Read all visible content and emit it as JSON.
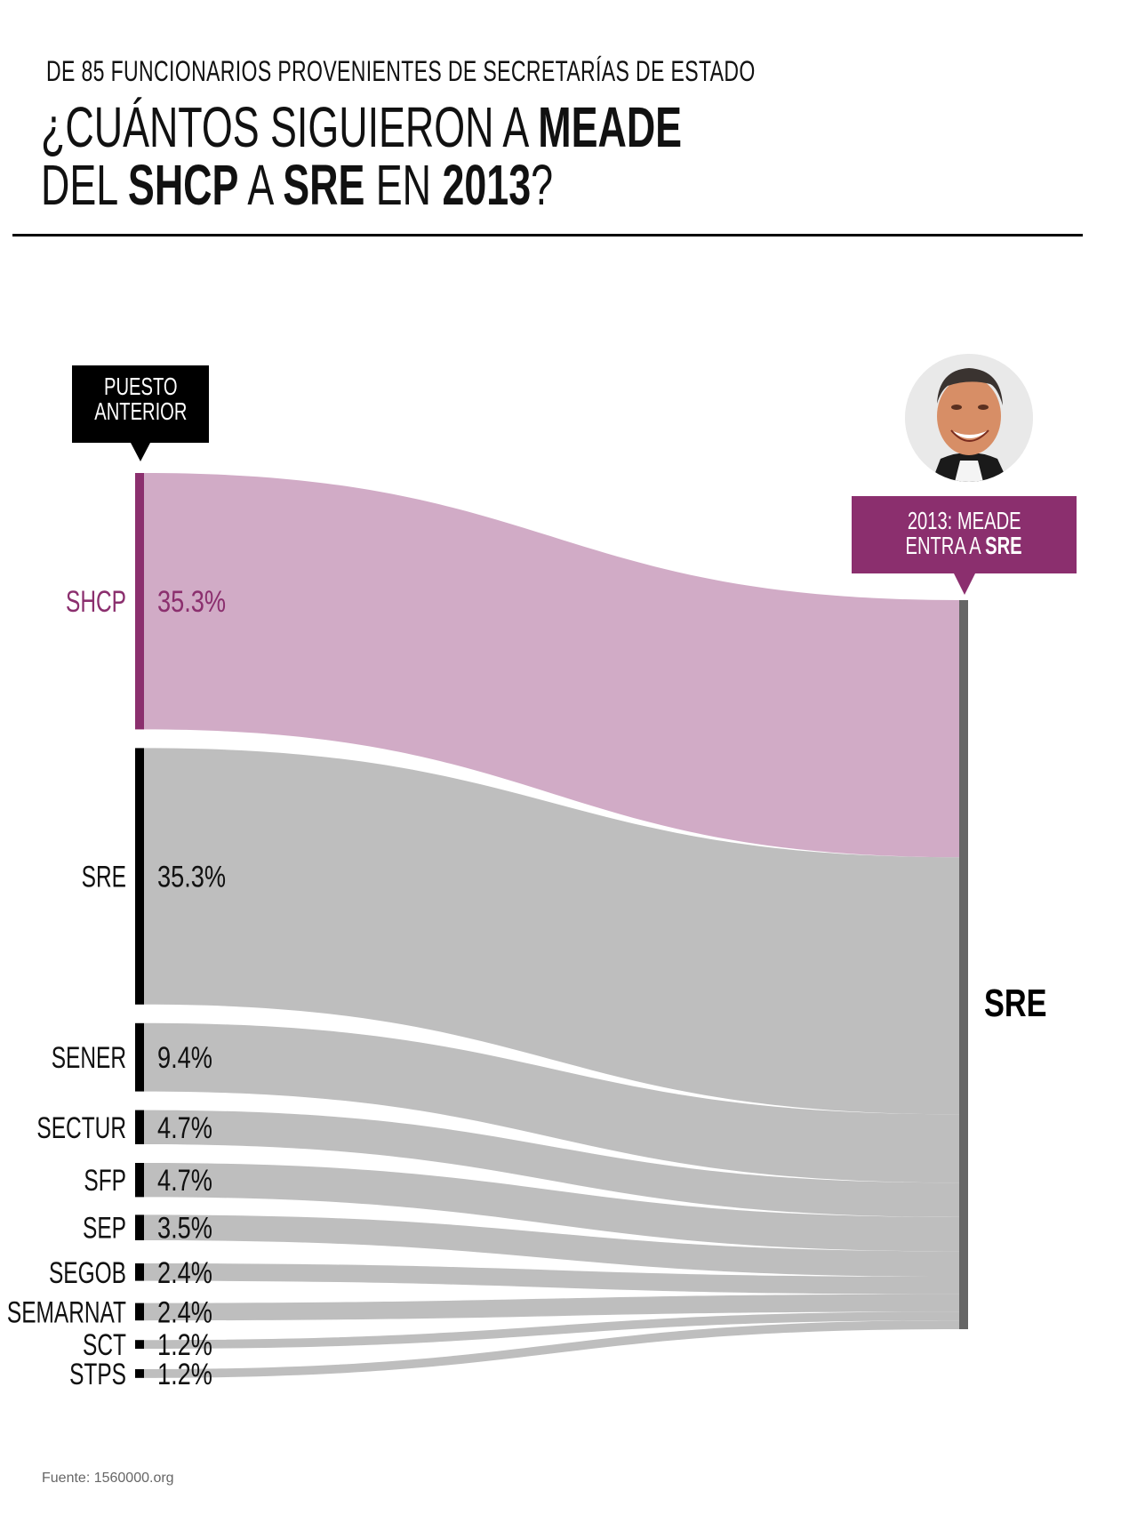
{
  "header": {
    "subtitle": "DE 85 FUNCIONARIOS PROVENIENTES DE SECRETARÍAS DE ESTADO",
    "title_line1_regular": "¿CUÁNTOS SIGUIERON A ",
    "title_line1_bold": "MEADE",
    "title_line2_parts": [
      {
        "text": "DEL ",
        "bold": false
      },
      {
        "text": "SHCP",
        "bold": true
      },
      {
        "text": " A ",
        "bold": false
      },
      {
        "text": "SRE",
        "bold": true
      },
      {
        "text": " EN ",
        "bold": false
      },
      {
        "text": "2013",
        "bold": true
      },
      {
        "text": "?",
        "bold": false
      }
    ]
  },
  "callouts": {
    "left_line1": "PUESTO",
    "left_line2": "ANTERIOR",
    "right_line1": "2013: MEADE",
    "right_line2_regular": "ENTRA A ",
    "right_line2_bold": "SRE"
  },
  "photo": {
    "subject": "portrait of Meade"
  },
  "colors": {
    "accent": "#8b2f6e",
    "highlight_flow": "#d1abc6",
    "flow": "#bebebe",
    "source_bar": "#000000",
    "target_bar": "#666666"
  },
  "source": "Fuente: 1560000.org",
  "chart_data": {
    "type": "sankey",
    "title": "¿CUÁNTOS SIGUIERON A MEADE DEL SHCP A SRE EN 2013?",
    "subtitle": "DE 85 FUNCIONARIOS PROVENIENTES DE SECRETARÍAS DE ESTADO",
    "target": "SRE",
    "unit": "%",
    "highlight": "SHCP",
    "flows": [
      {
        "source": "SHCP",
        "value": 35.3,
        "label": "35.3%"
      },
      {
        "source": "SRE",
        "value": 35.3,
        "label": "35.3%"
      },
      {
        "source": "SENER",
        "value": 9.4,
        "label": "9.4%"
      },
      {
        "source": "SECTUR",
        "value": 4.7,
        "label": "4.7%"
      },
      {
        "source": "SFP",
        "value": 4.7,
        "label": "4.7%"
      },
      {
        "source": "SEP",
        "value": 3.5,
        "label": "3.5%"
      },
      {
        "source": "SEGOB",
        "value": 2.4,
        "label": "2.4%"
      },
      {
        "source": "SEMARNAT",
        "value": 2.4,
        "label": "2.4%"
      },
      {
        "source": "SCT",
        "value": 1.2,
        "label": "1.2%"
      },
      {
        "source": "STPS",
        "value": 1.2,
        "label": "1.2%"
      }
    ]
  }
}
